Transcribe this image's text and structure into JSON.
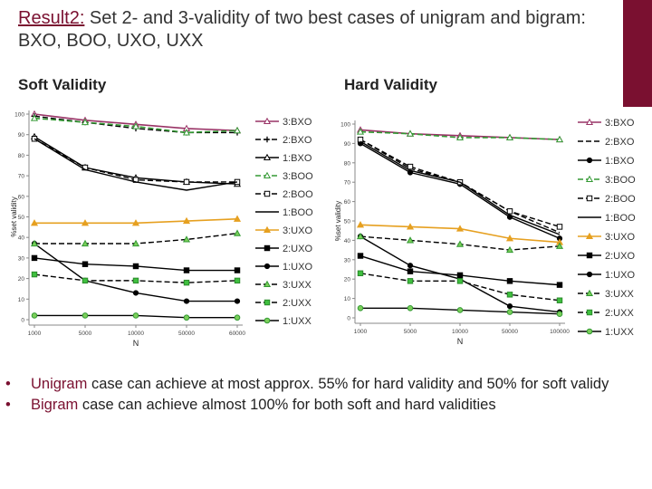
{
  "slide": {
    "title_prefix": "Result2:",
    "title_rest": " Set 2- and 3-validity of two best cases of unigram and bigram: BXO, BOO, UXO, UXX",
    "soft_label": "Soft Validity",
    "hard_label": "Hard Validity",
    "bullet1_kw": "Unigram",
    "bullet1_rest": " case can achieve at most approx. 55% for hard validity and 50% for soft validy",
    "bullet2_kw": "Bigram",
    "bullet2_rest": " case can achieve almost 100% for both soft and hard validities",
    "bullet_marker": "•",
    "accent_color": "#7a1030"
  },
  "chart_data": [
    {
      "type": "line",
      "title": "Soft Validity",
      "xlabel": "N",
      "ylabel": "%set validity",
      "categories": [
        "1000",
        "5000",
        "10000",
        "50000",
        "60000"
      ],
      "ylim": [
        0,
        100
      ],
      "yticks": [
        0,
        10,
        20,
        30,
        40,
        50,
        60,
        70,
        80,
        90,
        100
      ],
      "legend_position": "right",
      "series": [
        {
          "name": "3:BXO",
          "values": [
            100,
            97,
            95,
            93,
            92
          ],
          "color": "#993366",
          "dash": "",
          "marker": "tri-open"
        },
        {
          "name": "2:BXO",
          "values": [
            99,
            96,
            93,
            91,
            91
          ],
          "color": "#000000",
          "dash": "6,3",
          "marker": "plus"
        },
        {
          "name": "1:BXO",
          "values": [
            89,
            74,
            69,
            67,
            66
          ],
          "color": "#000000",
          "dash": "",
          "marker": "tri-open"
        },
        {
          "name": "3:BOO",
          "values": [
            98,
            96,
            94,
            91,
            92
          ],
          "color": "#339933",
          "dash": "6,3",
          "marker": "tri-open"
        },
        {
          "name": "2:BOO",
          "values": [
            88,
            74,
            68,
            67,
            67
          ],
          "color": "#000000",
          "dash": "6,3",
          "marker": "sq-open"
        },
        {
          "name": "1:BOO",
          "values": [
            88,
            73,
            67,
            63,
            67
          ],
          "color": "#000000",
          "dash": "",
          "marker": "none"
        },
        {
          "name": "3:UXO",
          "values": [
            47,
            47,
            47,
            48,
            49
          ],
          "color": "#e6a020",
          "dash": "",
          "marker": "tri-filled"
        },
        {
          "name": "2:UXO",
          "values": [
            30,
            27,
            26,
            24,
            24
          ],
          "color": "#000000",
          "dash": "",
          "marker": "sq-filled"
        },
        {
          "name": "1:UXO",
          "values": [
            37,
            19,
            13,
            9,
            9
          ],
          "color": "#000000",
          "dash": "",
          "marker": "circle"
        },
        {
          "name": "3:UXX",
          "values": [
            37,
            37,
            37,
            39,
            42
          ],
          "color": "#000000",
          "dash": "6,3",
          "marker": "tri-green"
        },
        {
          "name": "2:UXX",
          "values": [
            22,
            19,
            19,
            18,
            19
          ],
          "color": "#000000",
          "dash": "6,3",
          "marker": "sq-green"
        },
        {
          "name": "1:UXX",
          "values": [
            2,
            2,
            2,
            1,
            1
          ],
          "color": "#000000",
          "dash": "",
          "marker": "circle-green"
        }
      ]
    },
    {
      "type": "line",
      "title": "Hard Validity",
      "xlabel": "N",
      "ylabel": "%set validity",
      "categories": [
        "1000",
        "5000",
        "10000",
        "50000",
        "100000"
      ],
      "ylim": [
        0,
        100
      ],
      "yticks": [
        0,
        10,
        20,
        30,
        40,
        50,
        60,
        70,
        80,
        90,
        100
      ],
      "legend_position": "right",
      "series": [
        {
          "name": "3:BXO",
          "values": [
            97,
            95,
            94,
            93,
            92
          ],
          "color": "#993366",
          "dash": "",
          "marker": "tri-open"
        },
        {
          "name": "2:BXO",
          "values": [
            92,
            77,
            70,
            55,
            44
          ],
          "color": "#000000",
          "dash": "6,3",
          "marker": "none"
        },
        {
          "name": "1:BXO",
          "values": [
            90,
            75,
            69,
            52,
            41
          ],
          "color": "#000000",
          "dash": "",
          "marker": "circle"
        },
        {
          "name": "3:BOO",
          "values": [
            96,
            95,
            93,
            93,
            92
          ],
          "color": "#339933",
          "dash": "6,3",
          "marker": "tri-open"
        },
        {
          "name": "2:BOO",
          "values": [
            92,
            78,
            70,
            55,
            47
          ],
          "color": "#000000",
          "dash": "6,3",
          "marker": "sq-open"
        },
        {
          "name": "1:BOO",
          "values": [
            91,
            76,
            70,
            53,
            43
          ],
          "color": "#000000",
          "dash": "",
          "marker": "none"
        },
        {
          "name": "3:UXO",
          "values": [
            48,
            47,
            46,
            41,
            39
          ],
          "color": "#e6a020",
          "dash": "",
          "marker": "tri-filled"
        },
        {
          "name": "2:UXO",
          "values": [
            32,
            24,
            22,
            19,
            17
          ],
          "color": "#000000",
          "dash": "",
          "marker": "sq-filled"
        },
        {
          "name": "1:UXO",
          "values": [
            42,
            27,
            20,
            6,
            3
          ],
          "color": "#000000",
          "dash": "",
          "marker": "circle"
        },
        {
          "name": "3:UXX",
          "values": [
            42,
            40,
            38,
            35,
            37
          ],
          "color": "#000000",
          "dash": "6,3",
          "marker": "tri-green"
        },
        {
          "name": "2:UXX",
          "values": [
            23,
            19,
            19,
            12,
            9
          ],
          "color": "#000000",
          "dash": "6,3",
          "marker": "sq-green"
        },
        {
          "name": "1:UXX",
          "values": [
            5,
            5,
            4,
            3,
            2
          ],
          "color": "#000000",
          "dash": "",
          "marker": "circle-green"
        }
      ]
    }
  ]
}
